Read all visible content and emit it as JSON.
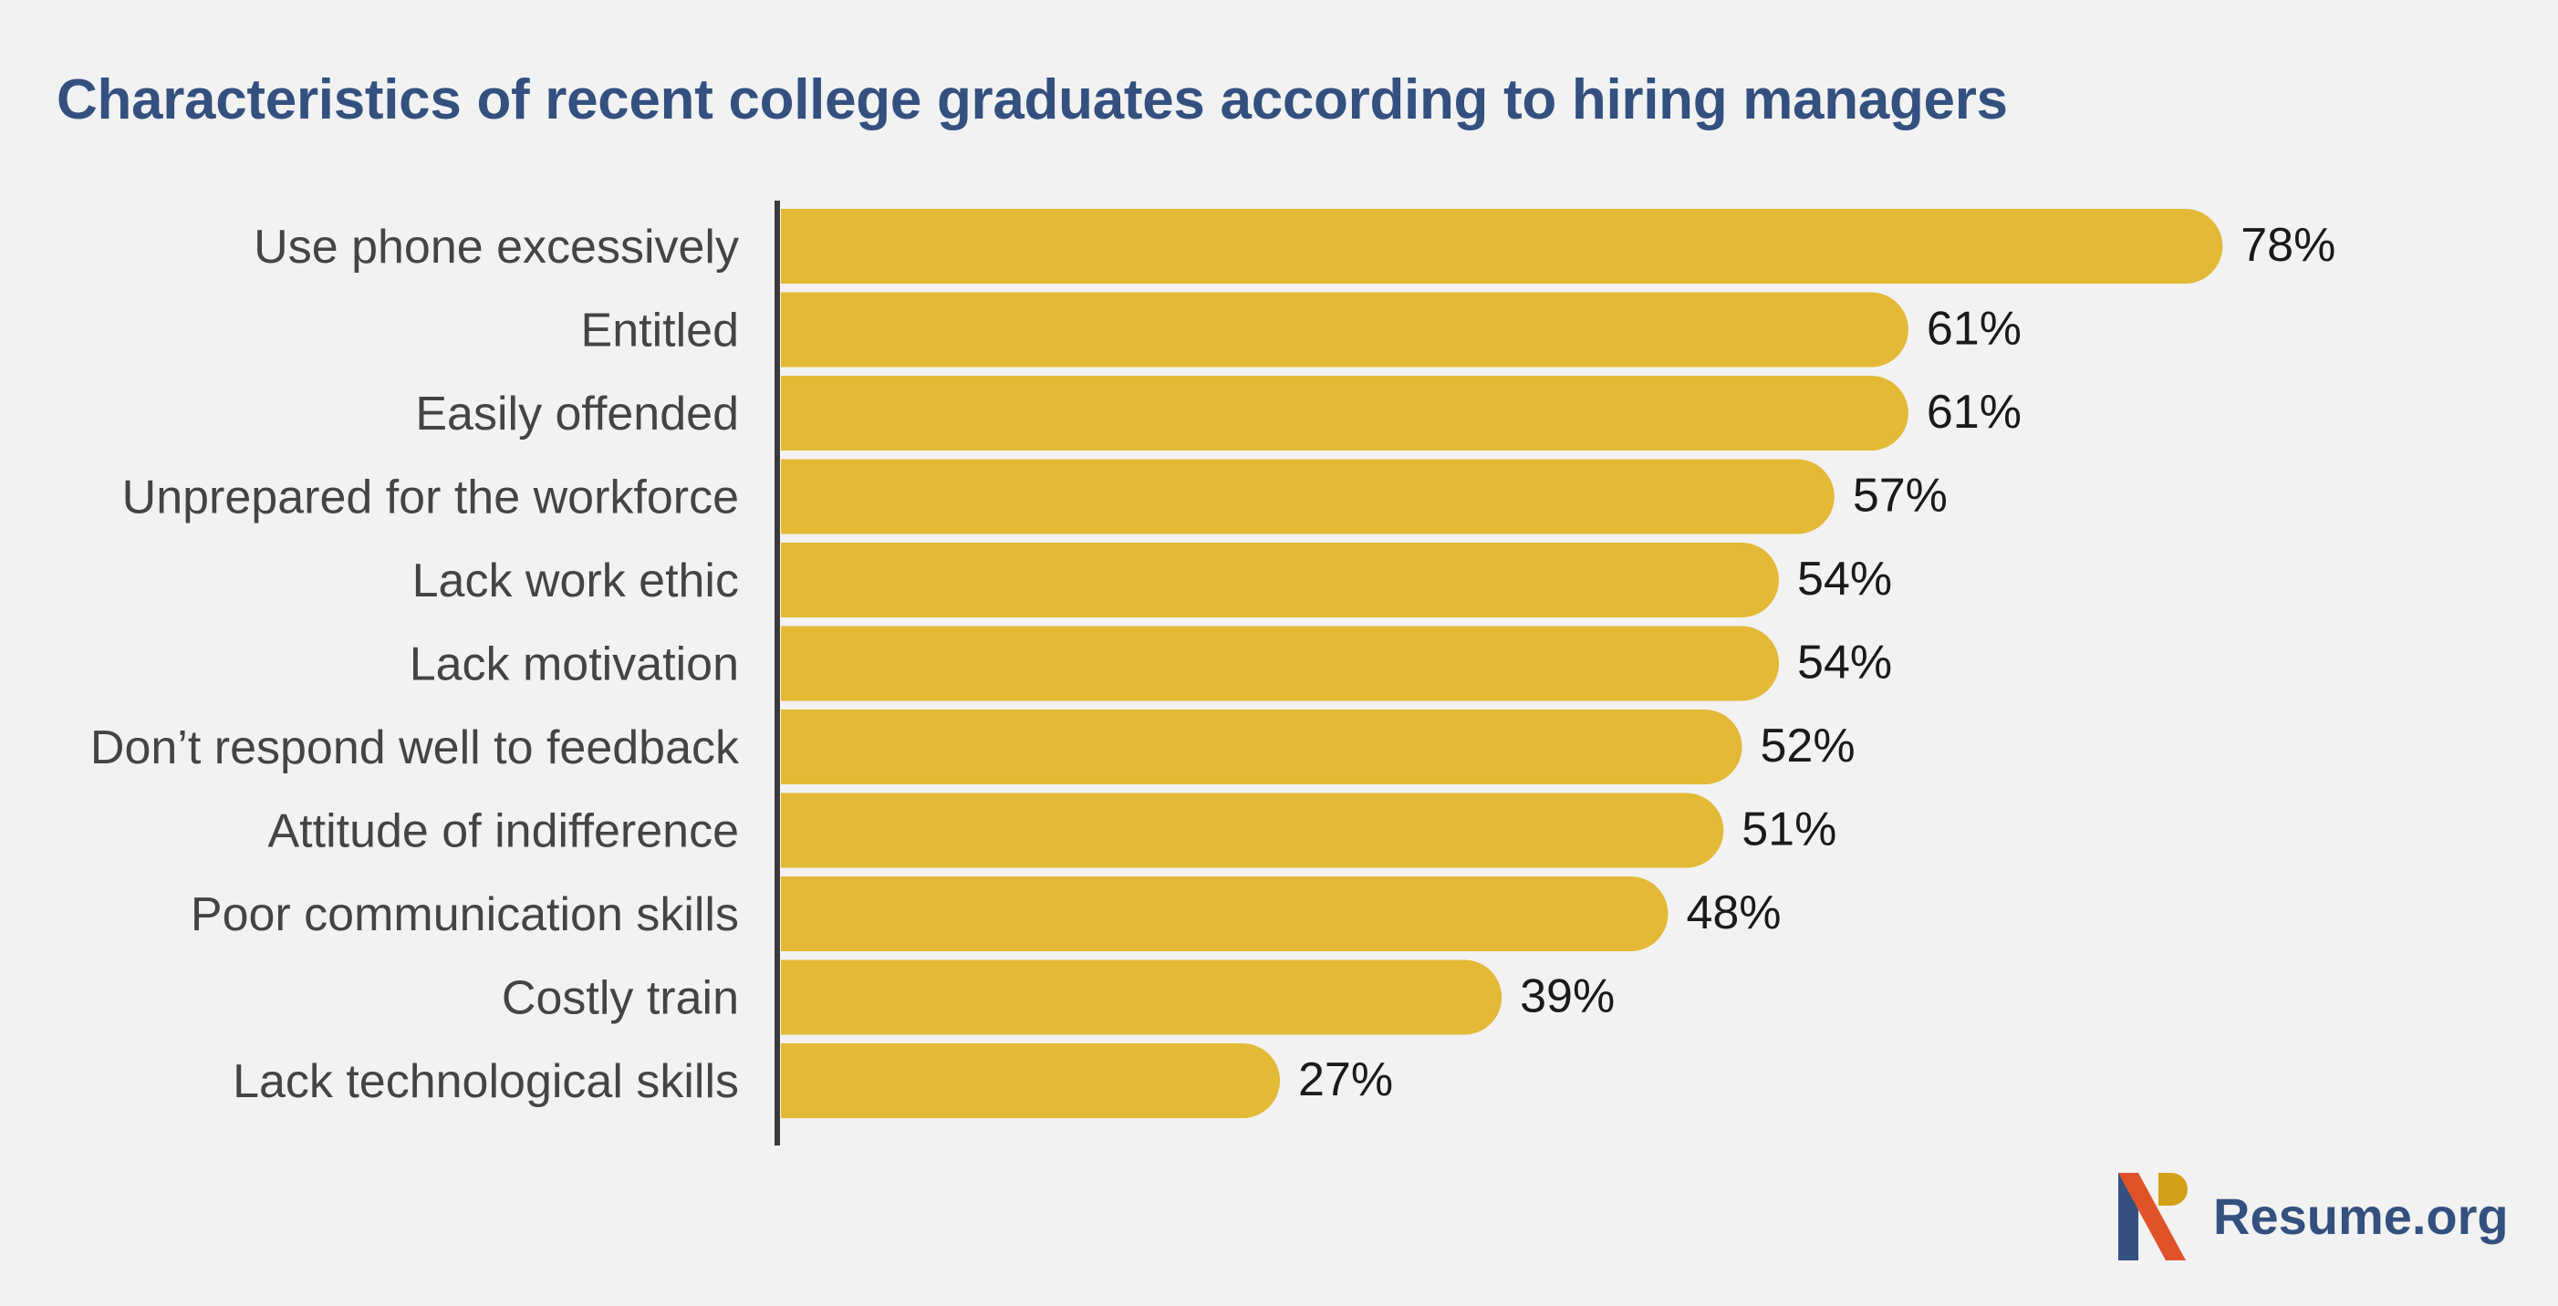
{
  "colors": {
    "background": "#f2f2f2",
    "bar": "#e3b936",
    "title": "#33507f",
    "axis": "#3a3a3a",
    "logo_navy": "#33507f",
    "logo_orange": "#e0532a",
    "logo_gold": "#d4a017"
  },
  "brand": {
    "name": "Resume.org",
    "logo_icon": "resume-org-logo-icon"
  },
  "chart_data": {
    "type": "bar",
    "orientation": "horizontal",
    "title": "Characteristics of recent college graduates according to hiring managers",
    "xlabel": "",
    "ylabel": "",
    "xlim": [
      0,
      100
    ],
    "grid": false,
    "value_suffix": "%",
    "categories": [
      "Use phone excessively",
      "Entitled",
      "Easily offended",
      "Unprepared for the workforce",
      "Lack work ethic",
      "Lack motivation",
      "Don’t respond well to feedback",
      "Attitude of indifference",
      "Poor communication skills",
      "Costly train",
      "Lack technological skills"
    ],
    "values": [
      78,
      61,
      61,
      57,
      54,
      54,
      52,
      51,
      48,
      39,
      27
    ],
    "value_labels": [
      "78%",
      "61%",
      "61%",
      "57%",
      "54%",
      "54%",
      "52%",
      "51%",
      "48%",
      "39%",
      "27%"
    ]
  }
}
